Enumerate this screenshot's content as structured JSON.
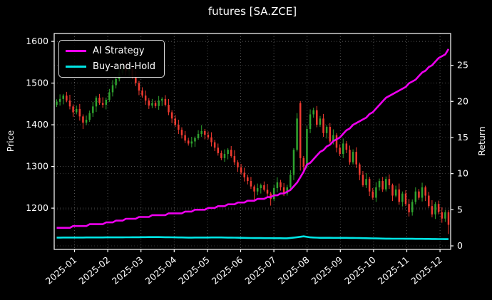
{
  "chart_data": {
    "type": "candlestick",
    "title": "futures [SA.ZCE]",
    "grid": "dotted",
    "background_color": "#000000",
    "text_color": "#ffffff",
    "x_axis": {
      "tick_labels": [
        "2025-01",
        "2025-02",
        "2025-03",
        "2025-04",
        "2025-05",
        "2025-06",
        "2025-07",
        "2025-08",
        "2025-09",
        "2025-10",
        "2025-11",
        "2025-12"
      ]
    },
    "left_axis": {
      "label": "Price",
      "ticks": [
        1200,
        1300,
        1400,
        1500,
        1600
      ],
      "range": [
        1101,
        1619
      ]
    },
    "right_axis": {
      "label": "Return",
      "ticks": [
        0,
        5,
        10,
        15,
        20,
        25
      ],
      "range": [
        -0.49,
        29.4
      ]
    },
    "legend": [
      {
        "label": "AI Strategy",
        "color": "#ee00ee"
      },
      {
        "label": "Buy-and-Hold",
        "color": "#00e5e5"
      }
    ],
    "candles": {
      "up_color": "#2fa42f",
      "down_color": "#ef3a30",
      "first_open": 1448,
      "closes": [
        1455,
        1462,
        1470,
        1458,
        1444,
        1430,
        1438,
        1420,
        1405,
        1412,
        1428,
        1444,
        1465,
        1452,
        1448,
        1460,
        1478,
        1495,
        1510,
        1524,
        1540,
        1528,
        1535,
        1515,
        1500,
        1482,
        1470,
        1458,
        1446,
        1452,
        1445,
        1458,
        1462,
        1448,
        1430,
        1415,
        1400,
        1388,
        1375,
        1362,
        1355,
        1360,
        1368,
        1378,
        1385,
        1376,
        1370,
        1358,
        1345,
        1332,
        1320,
        1330,
        1340,
        1325,
        1310,
        1298,
        1285,
        1274,
        1265,
        1252,
        1240,
        1248,
        1255,
        1244,
        1235,
        1222,
        1248,
        1262,
        1250,
        1235,
        1250,
        1280,
        1340,
        1415,
        1320,
        1300,
        1390,
        1425,
        1435,
        1400,
        1415,
        1380,
        1395,
        1360,
        1375,
        1345,
        1330,
        1355,
        1340,
        1310,
        1335,
        1305,
        1280,
        1255,
        1270,
        1240,
        1225,
        1250,
        1265,
        1245,
        1270,
        1255,
        1230,
        1245,
        1215,
        1235,
        1210,
        1190,
        1215,
        1240,
        1225,
        1250,
        1230,
        1205,
        1185,
        1210,
        1190,
        1175,
        1190,
        1160
      ],
      "wick_hi_pattern": [
        6,
        11,
        4,
        9,
        14,
        5,
        8,
        12,
        6,
        10
      ],
      "wick_lo_pattern": [
        5,
        9,
        13,
        4,
        7,
        11,
        5,
        10,
        8,
        6
      ],
      "overrides": {
        "8": [
          1420,
          1425,
          1390,
          1405
        ],
        "20": [
          1524,
          1548,
          1520,
          1540
        ],
        "60": [
          1252,
          1256,
          1220,
          1240
        ],
        "65": [
          1235,
          1239,
          1206,
          1222
        ],
        "73": [
          1340,
          1428,
          1336,
          1415
        ],
        "74": [
          1452,
          1457,
          1290,
          1320
        ],
        "119": [
          1190,
          1195,
          1138,
          1160
        ]
      }
    },
    "series": [
      {
        "name": "AI Strategy",
        "axis": "right",
        "color": "#ee00ee",
        "width": 2.6,
        "step": 0.25,
        "anchors": [
          [
            0,
            2.6
          ],
          [
            5,
            2.75
          ],
          [
            10,
            3.0
          ],
          [
            15,
            3.3
          ],
          [
            20,
            3.7
          ],
          [
            26,
            4.1
          ],
          [
            31,
            4.35
          ],
          [
            36,
            4.6
          ],
          [
            41,
            4.95
          ],
          [
            46,
            5.3
          ],
          [
            51,
            5.7
          ],
          [
            56,
            6.1
          ],
          [
            62,
            6.6
          ],
          [
            66,
            7.1
          ],
          [
            70,
            7.6
          ],
          [
            72,
            8.3
          ],
          [
            74,
            9.6
          ],
          [
            76,
            11.3
          ],
          [
            79,
            12.6
          ],
          [
            82,
            13.8
          ],
          [
            86,
            15.2
          ],
          [
            90,
            16.8
          ],
          [
            93,
            17.6
          ],
          [
            96,
            18.6
          ],
          [
            100,
            20.6
          ],
          [
            103,
            21.4
          ],
          [
            107,
            22.5
          ],
          [
            110,
            23.6
          ],
          [
            113,
            24.8
          ],
          [
            116,
            26.0
          ],
          [
            118,
            26.6
          ],
          [
            119,
            27.3
          ]
        ]
      },
      {
        "name": "Buy-and-Hold",
        "axis": "right",
        "color": "#00e5e5",
        "width": 2.6,
        "step": 0,
        "anchors": [
          [
            0,
            1.15
          ],
          [
            20,
            1.18
          ],
          [
            30,
            1.22
          ],
          [
            40,
            1.15
          ],
          [
            50,
            1.17
          ],
          [
            60,
            1.08
          ],
          [
            70,
            1.05
          ],
          [
            73,
            1.2
          ],
          [
            75,
            1.32
          ],
          [
            77,
            1.18
          ],
          [
            80,
            1.12
          ],
          [
            90,
            1.1
          ],
          [
            100,
            1.0
          ],
          [
            110,
            0.97
          ],
          [
            119,
            0.93
          ]
        ]
      }
    ],
    "style": {
      "grid_color": "#5a5a5a",
      "spine_color": "#ffffff"
    }
  }
}
